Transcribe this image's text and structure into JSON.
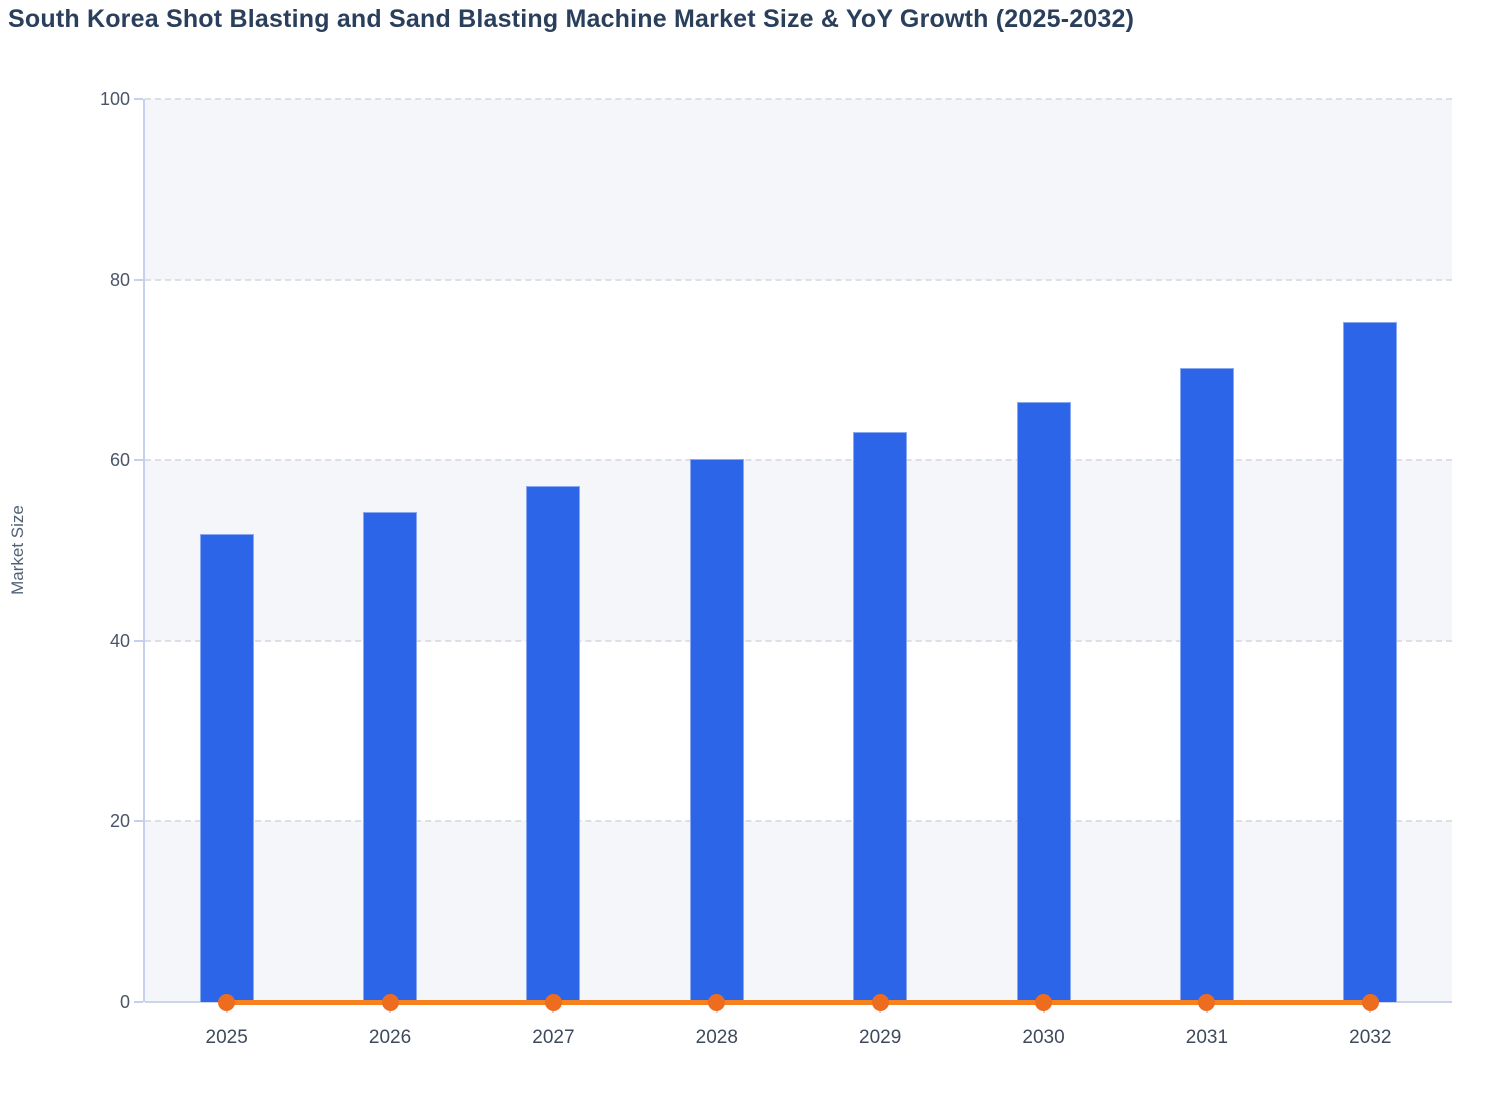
{
  "page": {
    "title": "South Korea Shot Blasting and Sand Blasting Machine Market Size & YoY Growth (2025-2032)"
  },
  "chart_data": {
    "type": "bar",
    "title": "South Korea Shot Blasting and Sand Blasting Machine Market Size & YoY Growth (2025-2032)",
    "xlabel": "",
    "ylabel": "Market Size",
    "categories": [
      "2025",
      "2026",
      "2027",
      "2028",
      "2029",
      "2030",
      "2031",
      "2032"
    ],
    "series": [
      {
        "name": "Market Size",
        "type": "bar",
        "values": [
          51.8,
          54.3,
          57.1,
          60.1,
          63.1,
          66.4,
          70.2,
          75.3
        ],
        "color": "#2d65e8"
      },
      {
        "name": "YoY Growth",
        "type": "line",
        "values": [
          0,
          0,
          0,
          0,
          0,
          0,
          0,
          0
        ],
        "color": "#f5821f"
      }
    ],
    "ylim": [
      0,
      100
    ],
    "yticks": [
      0,
      20,
      40,
      60,
      80,
      100
    ],
    "ytick_labels": [
      "0",
      "20",
      "40",
      "60",
      "80",
      "100"
    ],
    "grid": "horizontal-dashed",
    "plot_bands": "alternating-horizontal-from-top",
    "legend_position": "none"
  },
  "colors": {
    "bar_fill": "#2d65e8",
    "bar_border": "#8aa8f0",
    "line_orange": "#f5821f",
    "marker_orange": "#ee6c1d",
    "band_shaded": "#f4f6f9",
    "gridline": "#dcdfe6",
    "axis_line": "#c5cff0",
    "title_text": "#2a3f5c",
    "tick_text": "#4a5568"
  }
}
